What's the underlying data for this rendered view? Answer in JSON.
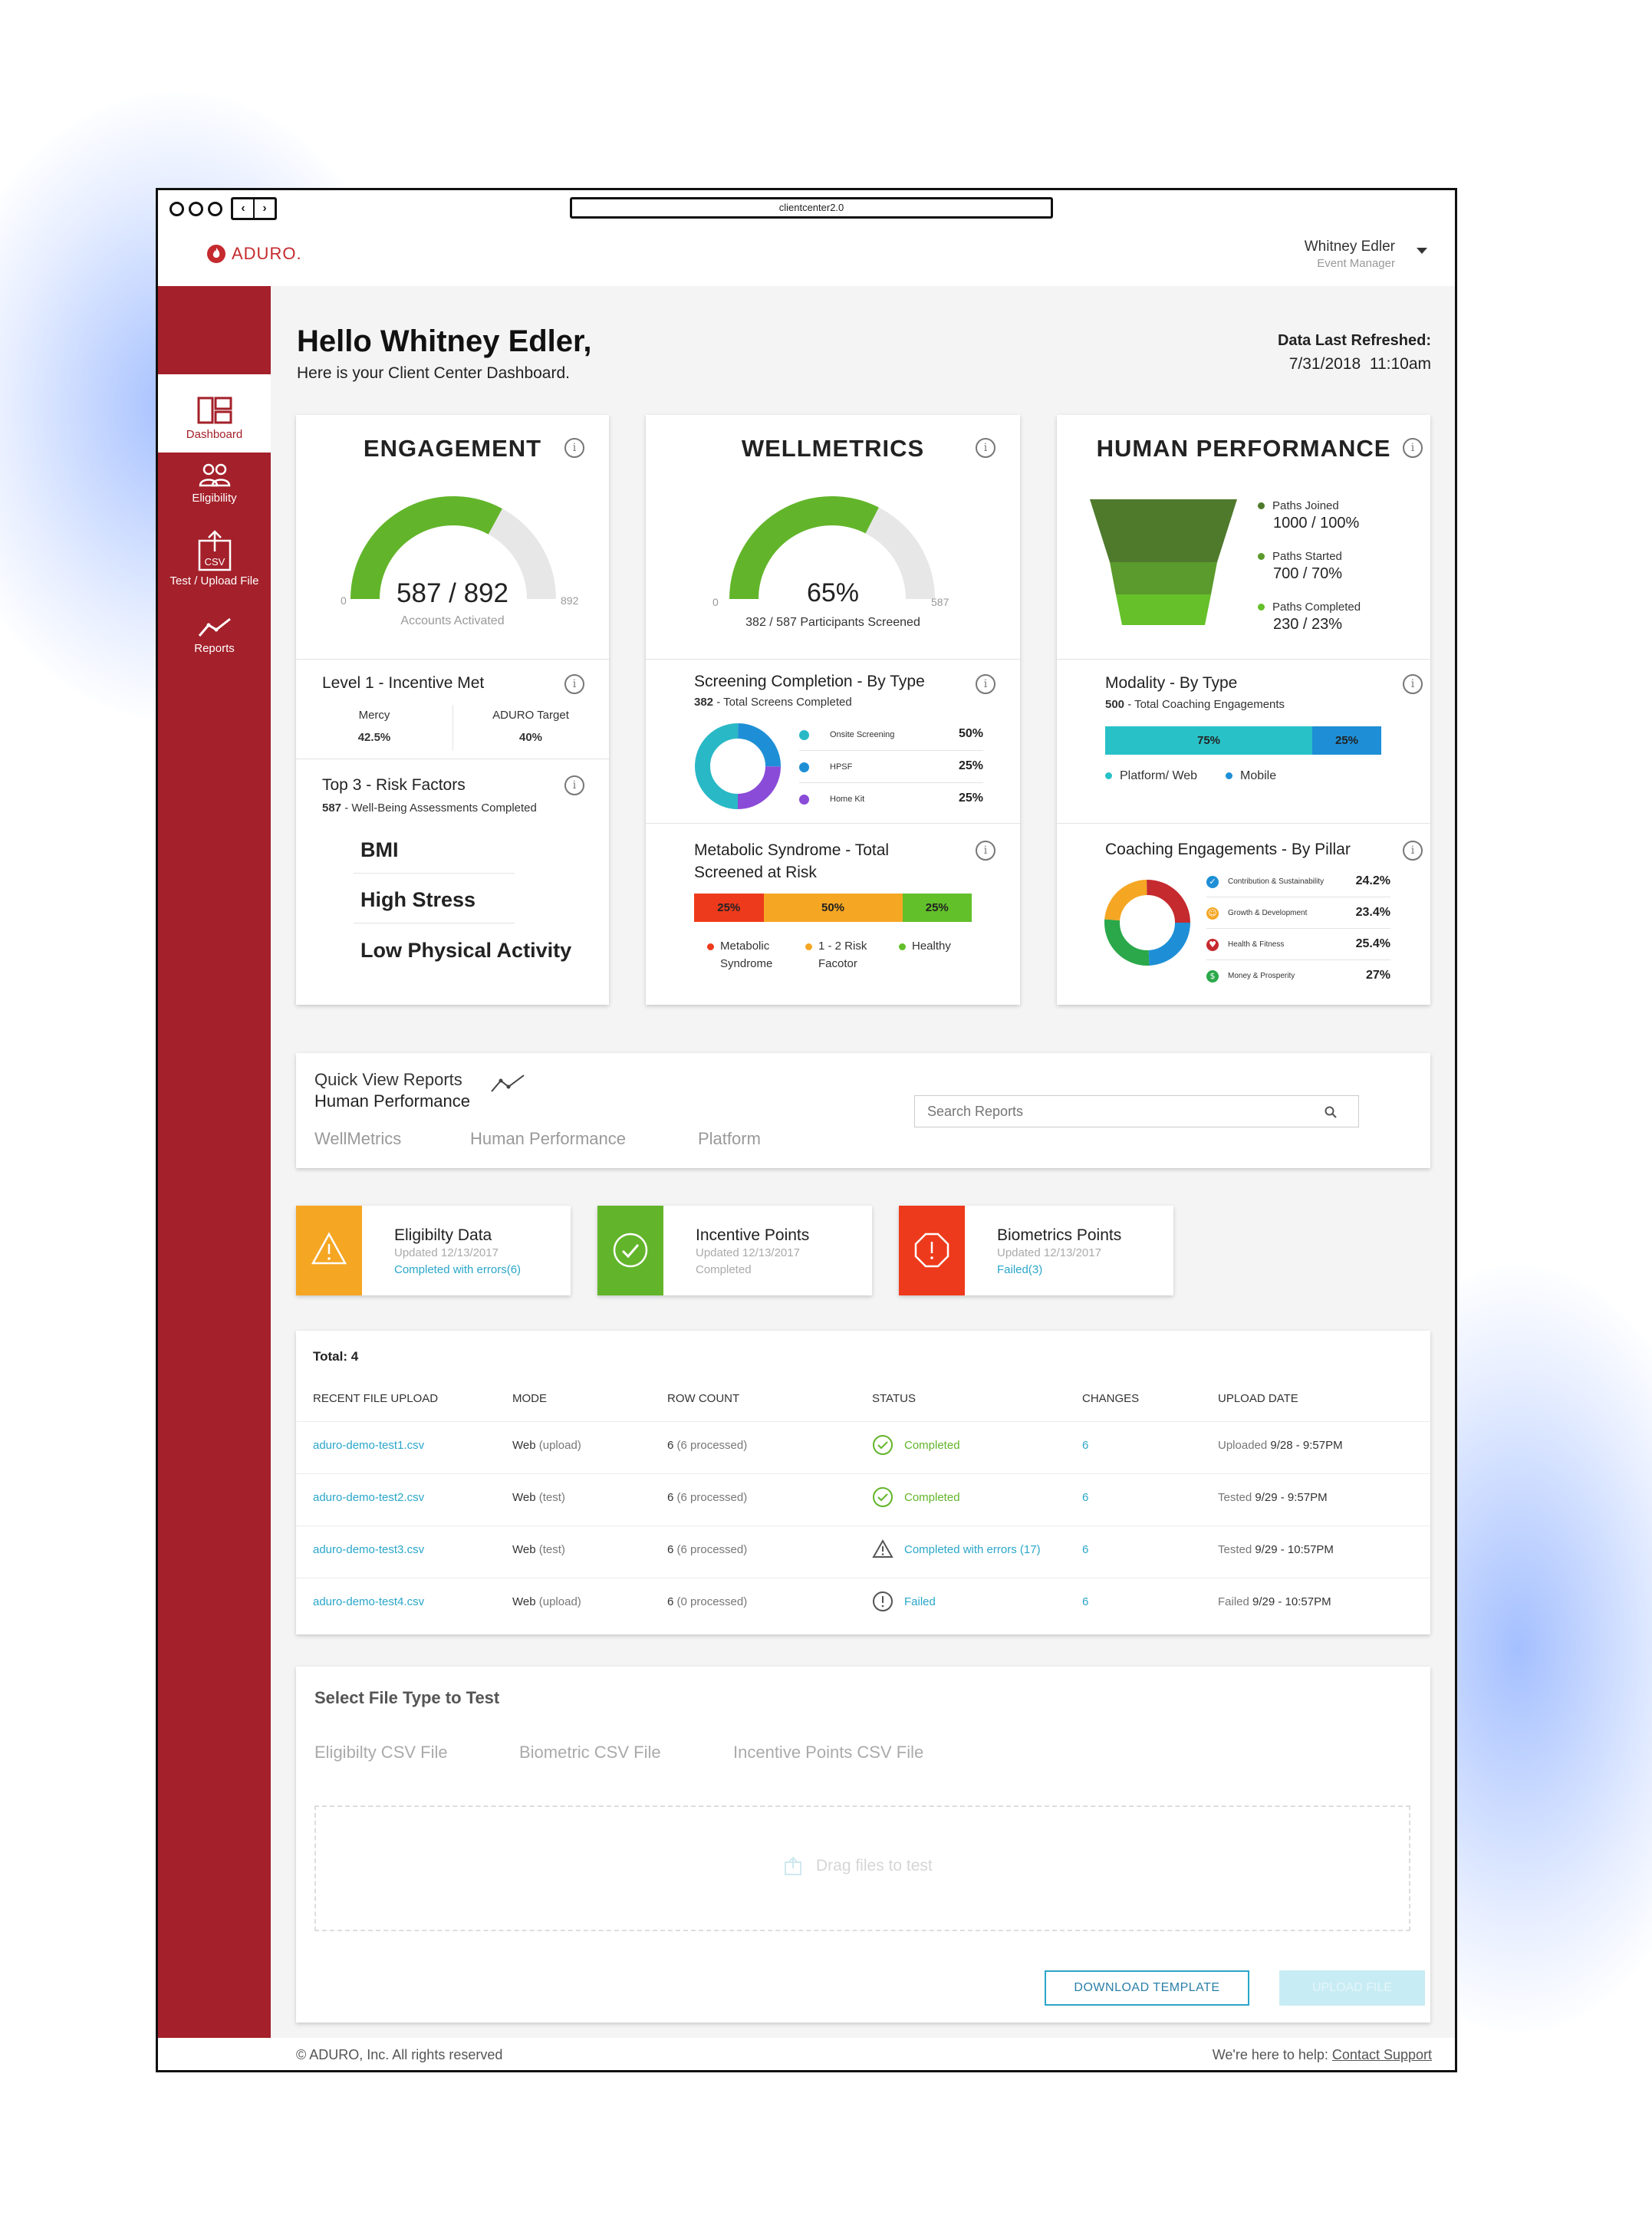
{
  "browser": {
    "url": "clientcenter2.0"
  },
  "brand": {
    "name": "ADURO.",
    "color": "#c52a2e",
    "sidebar_color": "#a4202a"
  },
  "user": {
    "name": "Whitney Edler",
    "role": "Event Manager"
  },
  "sidebar": {
    "items": [
      {
        "label": "Dashboard",
        "icon": "dashboard-icon",
        "active": true
      },
      {
        "label": "Eligibility",
        "icon": "users-icon",
        "active": false
      },
      {
        "label": "Test / Upload File",
        "icon": "csv-upload-icon",
        "active": false,
        "icon_text": "CSV"
      },
      {
        "label": "Reports",
        "icon": "reports-icon",
        "active": false
      }
    ]
  },
  "header": {
    "greeting": "Hello Whitney Edler,",
    "subtitle": "Here is your Client Center Dashboard.",
    "refresh_label": "Data Last Refreshed:",
    "refresh_value": "7/31/2018  11:10am"
  },
  "engagement": {
    "title": "ENGAGEMENT",
    "gauge_value": "587 / 892",
    "gauge_caption": "Accounts Activated",
    "gauge_min": "0",
    "gauge_max": "892",
    "gauge_fraction": 0.658,
    "level": {
      "title": "Level 1 - Incentive Met",
      "left_label": "Mercy",
      "left_value": "42.5%",
      "right_label": "ADURO Target",
      "right_value": "40%"
    },
    "risk": {
      "title": "Top 3 - Risk Factors",
      "count": "587",
      "caption": " - Well-Being Assessments Completed",
      "items": [
        "BMI",
        "High Stress",
        "Low Physical Activity"
      ]
    }
  },
  "wellmetrics": {
    "title": "WELLMETRICS",
    "gauge_value": "65%",
    "gauge_caption": "382 / 587 Participants Screened",
    "gauge_min": "0",
    "gauge_max": "587",
    "gauge_fraction": 0.65,
    "screening": {
      "title": "Screening Completion - By Type",
      "count": "382",
      "caption": " - Total Screens Completed",
      "rows": [
        {
          "label": "Onsite Screening",
          "value": "50%",
          "color": "#29b8c6"
        },
        {
          "label": "HPSF",
          "value": "25%",
          "color": "#1e8fd6"
        },
        {
          "label": "Home Kit",
          "value": "25%",
          "color": "#8a4bd8"
        }
      ]
    },
    "metabolic": {
      "title_line1": "Metabolic Syndrome - Total",
      "title_line2": "Screened at Risk",
      "segments": [
        {
          "label": "25%",
          "color": "#ee3a1c",
          "fraction": 0.25
        },
        {
          "label": "50%",
          "color": "#f5a623",
          "fraction": 0.5
        },
        {
          "label": "25%",
          "color": "#62c02a",
          "fraction": 0.25
        }
      ],
      "legend": [
        {
          "line1": "Metabolic",
          "line2": "Syndrome",
          "color": "#ee3a1c"
        },
        {
          "line1": "1 - 2 Risk",
          "line2": "Facotor",
          "color": "#f5a623"
        },
        {
          "line1": "Healthy",
          "line2": "",
          "color": "#62c02a"
        }
      ]
    }
  },
  "human_performance": {
    "title": "HUMAN PERFORMANCE",
    "funnel": [
      {
        "label": "Paths Joined",
        "value": "1000 / 100%",
        "color": "#4f7a2c"
      },
      {
        "label": "Paths Started",
        "value": "700 / 70%",
        "color": "#5b9a2c"
      },
      {
        "label": "Paths Completed",
        "value": "230 / 23%",
        "color": "#65c02a"
      }
    ],
    "modality": {
      "title": "Modality - By Type",
      "count": "500",
      "caption": " - Total Coaching Engagements",
      "segments": [
        {
          "label": "75%",
          "color": "#29c1c8",
          "fraction": 0.75
        },
        {
          "label": "25%",
          "color": "#1e8fd6",
          "fraction": 0.25
        }
      ],
      "legend": [
        {
          "label": "Platform/ Web",
          "color": "#29c1c8"
        },
        {
          "label": "Mobile",
          "color": "#1e8fd6"
        }
      ]
    },
    "coaching": {
      "title": "Coaching Engagements - By Pillar",
      "rows": [
        {
          "label": "Contribution & Sustainability",
          "value": "24.2%",
          "color": "#1e8fd6"
        },
        {
          "label": "Growth & Development",
          "value": "23.4%",
          "color": "#f5a623"
        },
        {
          "label": "Health & Fitness",
          "value": "25.4%",
          "color": "#c52a2e"
        },
        {
          "label": "Money & Prosperity",
          "value": "27%",
          "color": "#2aa84a"
        }
      ]
    }
  },
  "quick_view": {
    "title": "Quick View Reports",
    "subtitle": "Human Performance",
    "tabs": [
      "WellMetrics",
      "Human Performance",
      "Platform"
    ],
    "search_placeholder": "Search Reports"
  },
  "status_cards": [
    {
      "title": "Eligibilty Data",
      "updated": "Updated 12/13/2017",
      "status": "Completed with errors(6)",
      "color": "#f5a623",
      "icon": "warning-icon"
    },
    {
      "title": "Incentive Points",
      "updated": "Updated 12/13/2017",
      "status": "Completed",
      "color": "#62b52a",
      "icon": "check-circle-icon"
    },
    {
      "title": "Biometrics Points",
      "updated": "Updated 12/13/2017",
      "status": "Failed(3)",
      "color": "#ee3a1c",
      "icon": "alert-octagon-icon"
    }
  ],
  "uploads": {
    "total": "Total: 4",
    "columns": [
      "RECENT FILE UPLOAD",
      "MODE",
      "ROW COUNT",
      "STATUS",
      "CHANGES",
      "UPLOAD DATE"
    ],
    "rows": [
      {
        "file": "aduro-demo-test1.csv",
        "mode": "Web",
        "mode_detail": " (upload)",
        "rows": "6",
        "rows_detail": " (6 processed)",
        "status": "Completed",
        "status_icon": "check-circle-icon",
        "changes": "6",
        "date_label": "Uploaded",
        "date": " 9/28 - 9:57PM"
      },
      {
        "file": "aduro-demo-test2.csv",
        "mode": "Web",
        "mode_detail": " (test)",
        "rows": "6",
        "rows_detail": " (6 processed)",
        "status": "Completed",
        "status_icon": "check-circle-icon",
        "changes": "6",
        "date_label": "Tested",
        "date": " 9/29 - 9:57PM"
      },
      {
        "file": "aduro-demo-test3.csv",
        "mode": "Web",
        "mode_detail": " (test)",
        "rows": "6",
        "rows_detail": " (6 processed)",
        "status": "Completed with errors (17)",
        "status_icon": "warning-icon",
        "changes": "6",
        "date_label": "Tested",
        "date": " 9/29 - 10:57PM"
      },
      {
        "file": "aduro-demo-test4.csv",
        "mode": "Web",
        "mode_detail": " (upload)",
        "rows": "6",
        "rows_detail": " (0 processed)",
        "status": "Failed",
        "status_icon": "alert-circle-icon",
        "changes": "6",
        "date_label": "Failed",
        "date": " 9/29 - 10:57PM"
      }
    ]
  },
  "file_test": {
    "title": "Select File Type to Test",
    "tabs": [
      "Eligibilty CSV File",
      "Biometric CSV File",
      "Incentive Points CSV File"
    ],
    "drop_text": "Drag files to test",
    "download_button": "DOWNLOAD TEMPLATE",
    "upload_button": "UPLOAD FILE"
  },
  "footer": {
    "copyright": "© ADURO, Inc. All rights reserved",
    "help_text": "We're here to help: ",
    "help_link": "Contact Support"
  }
}
